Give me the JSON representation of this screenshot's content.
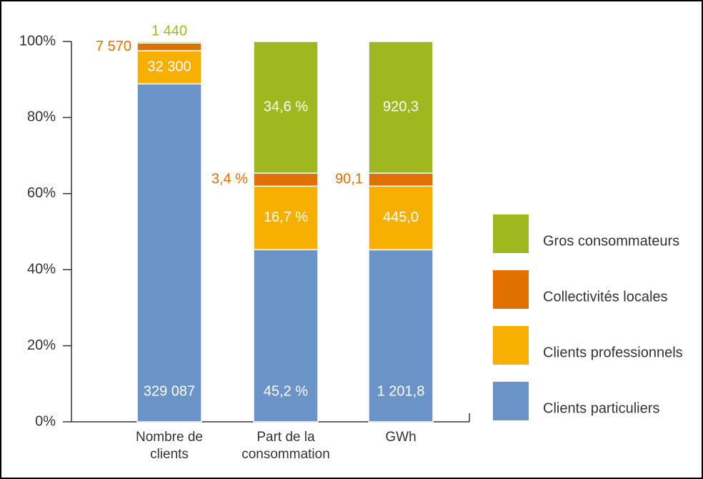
{
  "chart_data": {
    "type": "bar",
    "stacking": "percent",
    "categories": [
      "Nombre de clients",
      "Part de la consommation",
      "GWh"
    ],
    "series": [
      {
        "name": "Clients particuliers",
        "color": "#6a93c8",
        "values": [
          329087,
          45.2,
          1201.8
        ],
        "value_labels": [
          "329 087",
          "45,2 %",
          "1 201,8"
        ]
      },
      {
        "name": "Clients professionnels",
        "color": "#f8b000",
        "values": [
          32300,
          16.7,
          445.0
        ],
        "value_labels": [
          "32 300",
          "16,7 %",
          "445,0"
        ]
      },
      {
        "name": "Collectivités locales",
        "color": "#e07000",
        "values": [
          7570,
          3.4,
          90.1
        ],
        "value_labels": [
          "7 570",
          "3,4 %",
          "90,1"
        ]
      },
      {
        "name": "Gros consommateurs",
        "color": "#a0b820",
        "values": [
          1440,
          34.6,
          920.3
        ],
        "value_labels": [
          "1 440",
          "34,6 %",
          "920,3"
        ]
      }
    ],
    "ylim": [
      0,
      100
    ],
    "yticks": [
      {
        "value": 0,
        "label": "0%"
      },
      {
        "value": 20,
        "label": "20%"
      },
      {
        "value": 40,
        "label": "40%"
      },
      {
        "value": 60,
        "label": "60%"
      },
      {
        "value": 80,
        "label": "80%"
      },
      {
        "value": 100,
        "label": "100%"
      }
    ],
    "legend": "right"
  }
}
